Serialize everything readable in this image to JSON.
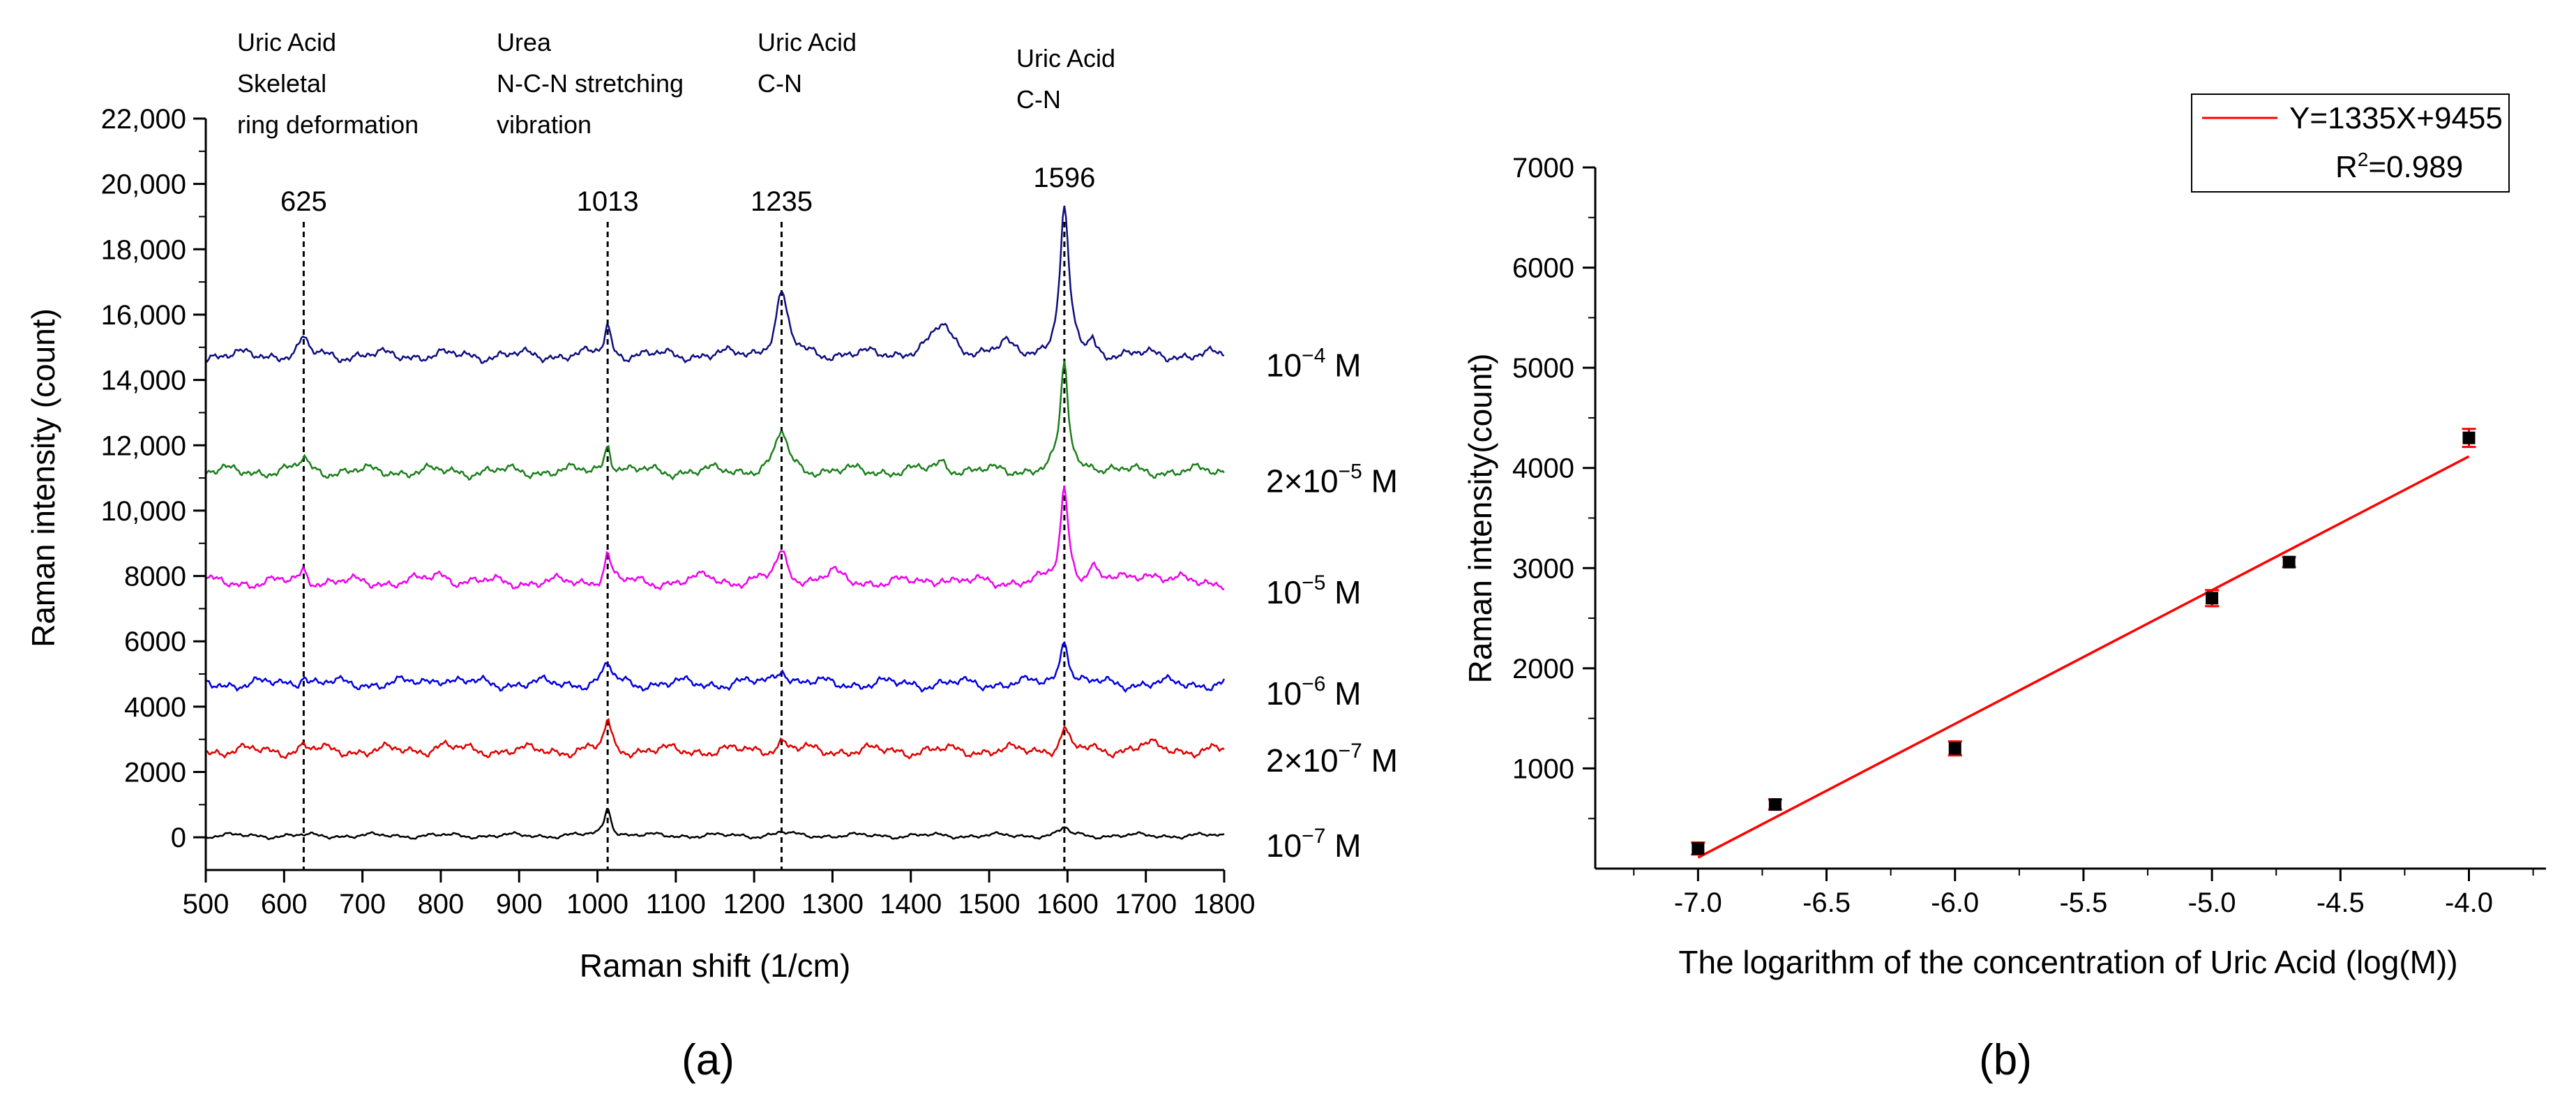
{
  "chart_data": [
    {
      "id": "a",
      "type": "line",
      "panel_label": "(a)",
      "title": "",
      "xlabel": "Raman shift (1/cm)",
      "ylabel": "Raman intensity (count)",
      "xlim": [
        500,
        1800
      ],
      "ylim": [
        -1000,
        22000
      ],
      "x_ticks": [
        500,
        600,
        700,
        800,
        900,
        1000,
        1100,
        1200,
        1300,
        1400,
        1500,
        1600,
        1700,
        1800
      ],
      "x_tick_labels": [
        "500",
        "600",
        "700",
        "800",
        "900",
        "1000",
        "1100",
        "1200",
        "1300",
        "1400",
        "1500",
        "1600",
        "1700",
        "1800"
      ],
      "y_ticks": [
        0,
        2000,
        4000,
        6000,
        8000,
        10000,
        12000,
        14000,
        16000,
        18000,
        20000,
        22000
      ],
      "y_tick_labels": [
        "0",
        "2000",
        "4000",
        "6000",
        "8000",
        "10,000",
        "12,000",
        "14,000",
        "16,000",
        "18,000",
        "20,000",
        "22,000"
      ],
      "grid": false,
      "peaks": [
        {
          "position": 625,
          "label": "625",
          "annotation": [
            "Uric Acid",
            "Skeletal",
            "ring deformation"
          ]
        },
        {
          "position": 1013,
          "label": "1013",
          "annotation": [
            "Urea",
            "N-C-N stretching",
            "vibration"
          ]
        },
        {
          "position": 1235,
          "label": "1235",
          "annotation": [
            "Uric Acid",
            "C-N"
          ]
        },
        {
          "position": 1596,
          "label": "1596",
          "annotation": [
            "Uric Acid",
            "C-N"
          ]
        }
      ],
      "series": [
        {
          "name": "1e-4 M",
          "label_base": "10",
          "label_exp": "−4",
          "label_unit": "M",
          "color": "#0d0d80",
          "baseline": 14750,
          "peaks": [
            [
              625,
              500,
              6
            ],
            [
              1013,
              900,
              5
            ],
            [
              1235,
              1900,
              9
            ],
            [
              1440,
              900,
              16
            ],
            [
              1520,
              300,
              10
            ],
            [
              1596,
              4400,
              7
            ],
            [
              1632,
              400,
              4
            ]
          ]
        },
        {
          "name": "2e-5 M",
          "label_base": "2×10",
          "label_exp": "−5",
          "label_unit": "M",
          "color": "#1b7f1b",
          "baseline": 11200,
          "peaks": [
            [
              625,
              400,
              6
            ],
            [
              1013,
              900,
              5
            ],
            [
              1235,
              1200,
              9
            ],
            [
              1440,
              300,
              10
            ],
            [
              1596,
              3300,
              6
            ],
            [
              1632,
              300,
              4
            ]
          ]
        },
        {
          "name": "1e-5 M",
          "label_base": "10",
          "label_exp": "−5",
          "label_unit": "M",
          "color": "#ee00ee",
          "baseline": 7800,
          "peaks": [
            [
              625,
              400,
              6
            ],
            [
              800,
              250,
              15
            ],
            [
              1013,
              900,
              5
            ],
            [
              1140,
              200,
              10
            ],
            [
              1235,
              900,
              9
            ],
            [
              1300,
              300,
              10
            ],
            [
              1440,
              200,
              8
            ],
            [
              1596,
              2900,
              6
            ],
            [
              1632,
              500,
              5
            ],
            [
              1700,
              300,
              20
            ]
          ]
        },
        {
          "name": "1e-6 M",
          "label_base": "10",
          "label_exp": "−6",
          "label_unit": "M",
          "color": "#0000e0",
          "baseline": 4700,
          "peaks": [
            [
              625,
              300,
              6
            ],
            [
              800,
              200,
              15
            ],
            [
              1013,
              600,
              6
            ],
            [
              1235,
              500,
              9
            ],
            [
              1596,
              1500,
              6
            ]
          ]
        },
        {
          "name": "2e-7 M",
          "label_base": "2×10",
          "label_exp": "−7",
          "label_unit": "M",
          "color": "#e00000",
          "baseline": 2650,
          "peaks": [
            [
              625,
              150,
              6
            ],
            [
              800,
              150,
              15
            ],
            [
              1013,
              900,
              5
            ],
            [
              1235,
              300,
              9
            ],
            [
              1596,
              700,
              6
            ],
            [
              1700,
              150,
              20
            ]
          ]
        },
        {
          "name": "1e-7 M",
          "label_base": "10",
          "label_exp": "−7",
          "label_unit": "M",
          "color": "#000000",
          "baseline": 50,
          "peaks": [
            [
              1013,
              900,
              5
            ],
            [
              1235,
              100,
              9
            ],
            [
              1596,
              250,
              6
            ]
          ]
        }
      ]
    },
    {
      "id": "b",
      "type": "scatter",
      "panel_label": "(b)",
      "title": "",
      "xlabel": "The logarithm of the concentration of Uric Acid (log(M))",
      "ylabel": "Raman intensity(count)",
      "xlim": [
        -7.4,
        -3.7
      ],
      "ylim": [
        0,
        7000
      ],
      "x_ticks": [
        -7.0,
        -6.5,
        -6.0,
        -5.5,
        -5.0,
        -4.5,
        -4.0
      ],
      "x_tick_labels": [
        "-7.0",
        "-6.5",
        "-6.0",
        "-5.5",
        "-5.0",
        "-4.5",
        "-4.0"
      ],
      "y_ticks": [
        1000,
        2000,
        3000,
        4000,
        5000,
        6000,
        7000
      ],
      "y_tick_labels": [
        "1000",
        "2000",
        "3000",
        "4000",
        "5000",
        "6000",
        "7000"
      ],
      "grid": false,
      "points": [
        {
          "x": -7.0,
          "y": 200,
          "err": 60
        },
        {
          "x": -6.7,
          "y": 640,
          "err": 50
        },
        {
          "x": -6.0,
          "y": 1200,
          "err": 70
        },
        {
          "x": -5.0,
          "y": 2700,
          "err": 80
        },
        {
          "x": -4.7,
          "y": 3060,
          "err": 50
        },
        {
          "x": -4.0,
          "y": 4300,
          "err": 90
        }
      ],
      "fit": {
        "slope": 1335,
        "intercept": 9455,
        "x_range": [
          -7.0,
          -4.0
        ],
        "color": "#ff0000"
      },
      "legend": {
        "placement": "top-right",
        "equation": "Y=1335X+9455",
        "r2_prefix": "R",
        "r2_exp": "2",
        "r2_value": "=0.989"
      },
      "marker_color": "#000000",
      "error_color": "#ff0000"
    }
  ]
}
